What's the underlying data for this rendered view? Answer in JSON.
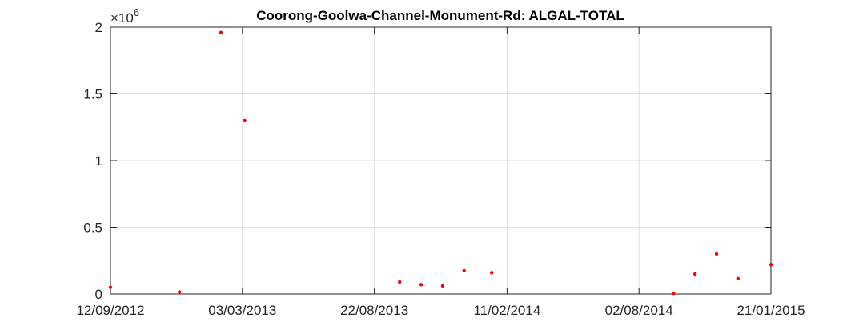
{
  "chart_data": {
    "type": "scatter",
    "title": "Coorong-Goolwa-Channel-Monument-Rd: ALGAL-TOTAL",
    "xlabel": "",
    "ylabel": "",
    "x_axis_type": "date",
    "xlim": [
      "2012-09-12",
      "2015-01-21"
    ],
    "ylim": [
      0,
      2000000
    ],
    "y_exponent_label": "×10",
    "y_exponent_power": "6",
    "x_ticks": [
      {
        "date": "2012-09-12",
        "label": "12/09/2012"
      },
      {
        "date": "2013-03-03",
        "label": "03/03/2013"
      },
      {
        "date": "2013-08-22",
        "label": "22/08/2013"
      },
      {
        "date": "2014-02-11",
        "label": "11/02/2014"
      },
      {
        "date": "2014-08-02",
        "label": "02/08/2014"
      },
      {
        "date": "2015-01-21",
        "label": "21/01/2015"
      }
    ],
    "y_ticks": [
      {
        "value": 0,
        "label": "0"
      },
      {
        "value": 500000,
        "label": "0.5"
      },
      {
        "value": 1000000,
        "label": "1"
      },
      {
        "value": 1500000,
        "label": "1.5"
      },
      {
        "value": 2000000,
        "label": "2"
      }
    ],
    "grid": true,
    "marker_color": "#ff0000",
    "series": [
      {
        "points": [
          {
            "x": "2012-09-12",
            "y": 50000
          },
          {
            "x": "2012-12-11",
            "y": 15000
          },
          {
            "x": "2013-02-03",
            "y": 1960000
          },
          {
            "x": "2013-03-06",
            "y": 1300000
          },
          {
            "x": "2013-09-24",
            "y": 90000
          },
          {
            "x": "2013-10-22",
            "y": 70000
          },
          {
            "x": "2013-11-19",
            "y": 60000
          },
          {
            "x": "2013-12-17",
            "y": 175000
          },
          {
            "x": "2014-01-22",
            "y": 160000
          },
          {
            "x": "2014-09-16",
            "y": 5000
          },
          {
            "x": "2014-10-14",
            "y": 150000
          },
          {
            "x": "2014-11-11",
            "y": 300000
          },
          {
            "x": "2014-12-09",
            "y": 115000
          },
          {
            "x": "2015-01-21",
            "y": 220000
          }
        ]
      }
    ]
  }
}
